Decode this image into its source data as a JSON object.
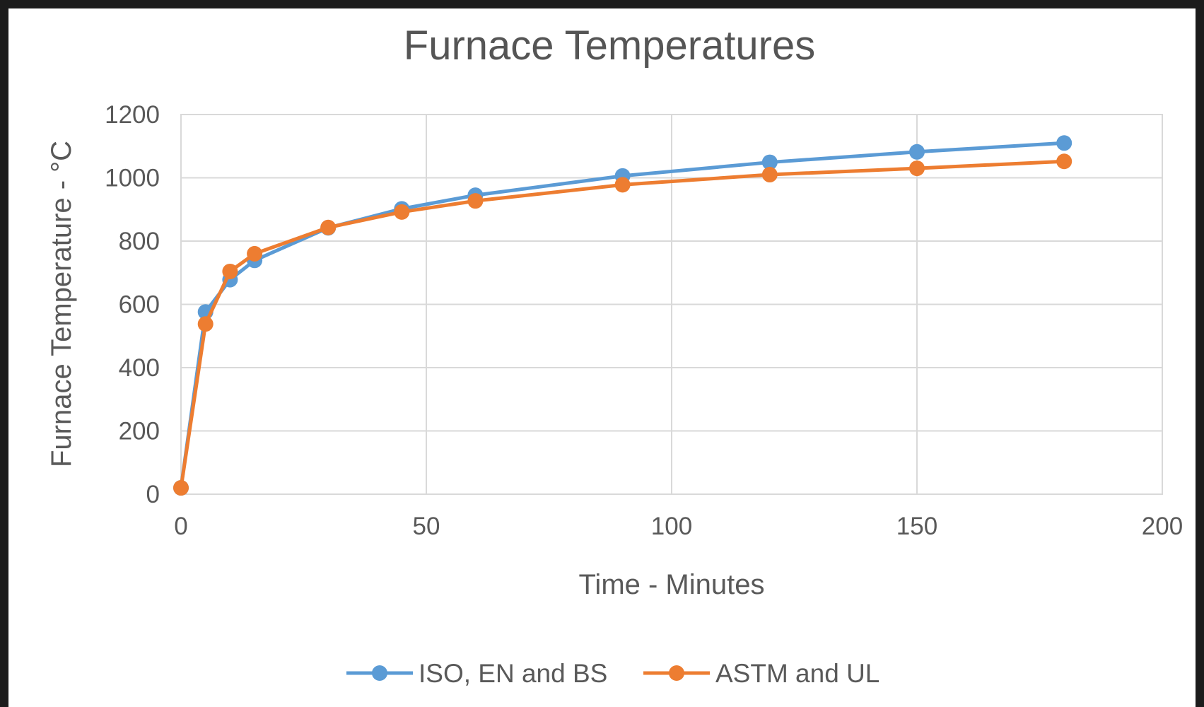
{
  "chart_data": {
    "type": "line",
    "title": "Furnace Temperatures",
    "xlabel": "Time - Minutes",
    "ylabel": "Furnace Temperature - °C",
    "xlim": [
      0,
      200
    ],
    "ylim": [
      0,
      1200
    ],
    "xticks": [
      0,
      50,
      100,
      150,
      200
    ],
    "yticks": [
      0,
      200,
      400,
      600,
      800,
      1000,
      1200
    ],
    "grid": true,
    "legend_position": "bottom",
    "series": [
      {
        "name": "ISO, EN and BS",
        "color": "#5B9BD5",
        "x": [
          0,
          5,
          10,
          15,
          30,
          45,
          60,
          90,
          120,
          150,
          180
        ],
        "y": [
          20,
          576,
          678,
          739,
          842,
          902,
          945,
          1006,
          1049,
          1082,
          1110
        ]
      },
      {
        "name": "ASTM and UL",
        "color": "#ED7D31",
        "x": [
          0,
          5,
          10,
          15,
          30,
          45,
          60,
          90,
          120,
          150,
          180
        ],
        "y": [
          20,
          538,
          704,
          760,
          843,
          892,
          927,
          978,
          1010,
          1030,
          1052
        ]
      }
    ]
  }
}
